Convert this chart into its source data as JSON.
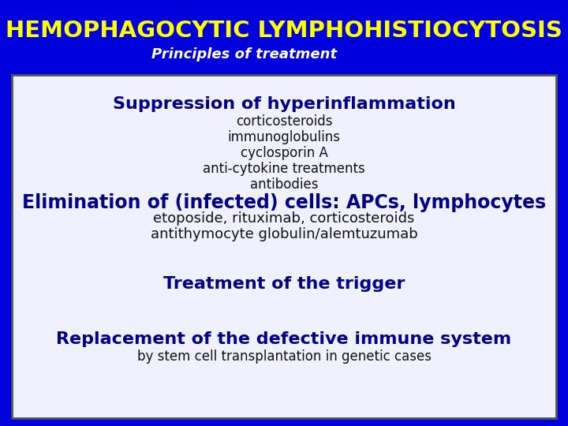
{
  "title": "HEMOPHAGOCYTIC LYMPHOHISTIOCYTOSIS",
  "subtitle": "Principles of treatment",
  "header_bg": "#0000DD",
  "title_color": "#FFFF00",
  "subtitle_color": "#FFFFFF",
  "body_bg": "#F0F0FF",
  "border_color": "#555555",
  "heading_color": "#00008B",
  "body_text_color": "#111111",
  "sections": [
    {
      "heading": "Suppression of hyperinflammation",
      "items": [
        "corticosteroids",
        "immunoglobulins",
        "cyclosporin A",
        "anti-cytokine treatments",
        "antibodies"
      ],
      "heading_fontsize": 16,
      "item_fontsize": 12
    },
    {
      "heading": "Elimination of (infected) cells: APCs, lymphocytes",
      "items": [
        "etoposide, rituximab, corticosteroids",
        "antithymocyte globulin/alemtuzumab"
      ],
      "heading_fontsize": 17,
      "item_fontsize": 13
    },
    {
      "heading": "Treatment of the trigger",
      "items": [],
      "heading_fontsize": 16,
      "item_fontsize": 12
    },
    {
      "heading": "Replacement of the defective immune system",
      "items": [
        "by stem cell transplantation in genetic cases"
      ],
      "heading_fontsize": 16,
      "item_fontsize": 12
    }
  ],
  "fig_width": 7.2,
  "fig_height": 5.4,
  "dpi": 100
}
